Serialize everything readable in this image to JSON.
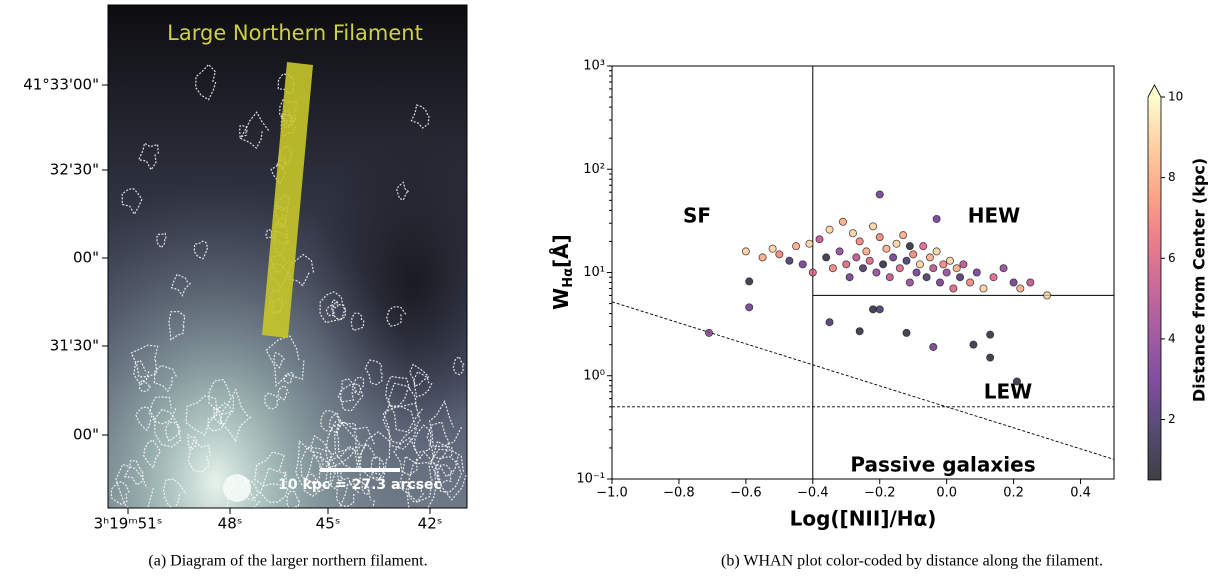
{
  "panel_a": {
    "title": "Large Northern Filament",
    "dec_ticks": [
      "41°33'00\"",
      "32'30\"",
      "00\"",
      "31'30\"",
      "00\""
    ],
    "ra_ticks": [
      "3ʰ19ᵐ51ˢ",
      "48ˢ",
      "45ˢ",
      "42ˢ"
    ],
    "scale_bar": "10 kpc = 27.3 arcsec"
  },
  "captions": [
    "(a) Diagram of the larger northern filament.",
    "(b) WHAN plot color-coded by distance along the filament."
  ],
  "chart_data": {
    "type": "scatter",
    "xlabel": "Log([NII]/Hα)",
    "ylabel": [
      "W",
      "Hα",
      "[Å]"
    ],
    "xlim": [
      -1.0,
      0.5
    ],
    "ylim": [
      0.1,
      1000
    ],
    "yscale": "log",
    "xticks": [
      {
        "value": -1.0,
        "label": "−1.0"
      },
      {
        "value": -0.8,
        "label": "−0.8"
      },
      {
        "value": -0.6,
        "label": "−0.6"
      },
      {
        "value": -0.4,
        "label": "−0.4"
      },
      {
        "value": -0.2,
        "label": "−0.2"
      },
      {
        "value": 0.0,
        "label": "0.0"
      },
      0.2,
      0.4
    ],
    "yticks": [
      {
        "value": 0.1,
        "label": "10⁻¹"
      },
      {
        "value": 1,
        "label": "10⁰"
      },
      {
        "value": 10,
        "label": "10¹"
      },
      {
        "value": 100,
        "label": "10²"
      },
      {
        "value": 1000,
        "label": "10³"
      }
    ],
    "annotations": [
      "SF",
      "HEW",
      "LEW",
      "Passive galaxies"
    ],
    "reference_lines": [
      {
        "x": [
          -0.4,
          -0.4
        ],
        "y": [
          0.1,
          1000
        ],
        "style": "solid"
      },
      {
        "x": [
          -0.4,
          0.5
        ],
        "y": [
          6,
          6
        ],
        "style": "solid"
      },
      {
        "x": [
          -1.0,
          0.5
        ],
        "y": [
          0.5,
          0.5
        ],
        "style": "dashed"
      },
      {
        "x": [
          -1.0,
          0.5
        ],
        "y": [
          5.2,
          0.155
        ],
        "style": "dashed"
      }
    ],
    "colorbar": {
      "label": "Distance from Center (kpc)",
      "lim": [
        0.5,
        10
      ],
      "ticks": [
        2,
        4,
        6,
        8,
        10
      ],
      "cmap": "magma",
      "extend": "max"
    },
    "series": [
      {
        "x": [
          -0.52,
          -0.5,
          -0.47,
          -0.45,
          -0.43,
          -0.41,
          -0.4,
          -0.38,
          -0.36,
          -0.35,
          -0.34,
          -0.32,
          -0.31,
          -0.3,
          -0.29,
          -0.28,
          -0.27,
          -0.26,
          -0.25,
          -0.24,
          -0.23,
          -0.22,
          -0.21,
          -0.2,
          -0.19,
          -0.18,
          -0.17,
          -0.16,
          -0.15,
          -0.14,
          -0.13,
          -0.12,
          -0.11,
          -0.1,
          -0.09,
          -0.08,
          -0.07,
          -0.06,
          -0.05,
          -0.04,
          -0.03,
          -0.02,
          -0.01,
          0.0,
          0.01,
          0.02,
          0.03,
          0.04,
          0.05,
          0.07,
          0.09,
          0.11,
          0.14,
          0.17,
          0.22,
          0.25,
          -0.71,
          -0.59,
          -0.59,
          -0.2,
          -0.35,
          -0.22,
          -0.2,
          -0.26,
          -0.12,
          -0.04,
          0.08,
          0.13,
          0.13,
          0.21,
          -0.11,
          -0.03,
          0.3,
          0.2,
          -0.6,
          -0.55
        ],
        "y": [
          17,
          15,
          13,
          18,
          12,
          19,
          10,
          21,
          14,
          26,
          11,
          16,
          31,
          12,
          9,
          24,
          14,
          20,
          11,
          16,
          13,
          28,
          10,
          22,
          12,
          17,
          9,
          14,
          19,
          11,
          23,
          13,
          8,
          15,
          10,
          12,
          18,
          9,
          14,
          11,
          16,
          8,
          12,
          10,
          13,
          7,
          11,
          9,
          12,
          8,
          10,
          7,
          9,
          11,
          7,
          8,
          2.6,
          4.6,
          8.2,
          57,
          3.3,
          4.4,
          4.4,
          2.7,
          2.6,
          1.9,
          2.0,
          1.5,
          2.5,
          0.88,
          18,
          33,
          6,
          8,
          16,
          14
        ],
        "c": [
          9,
          7,
          2,
          8,
          3,
          9,
          6,
          5,
          1,
          9,
          7,
          4,
          8,
          6,
          3,
          9,
          5,
          7,
          2,
          8,
          6,
          9,
          4,
          7,
          1,
          8,
          5,
          3,
          9,
          6,
          8,
          2,
          4,
          7,
          3,
          9,
          6,
          2,
          8,
          5,
          9,
          3,
          7,
          4,
          9,
          6,
          8,
          2,
          5,
          7,
          3,
          9,
          6,
          4,
          8,
          5,
          4,
          3,
          1,
          3,
          2,
          1,
          2,
          1,
          1,
          3,
          1,
          1,
          1,
          1,
          1,
          3,
          9,
          3,
          9,
          8
        ]
      }
    ]
  }
}
